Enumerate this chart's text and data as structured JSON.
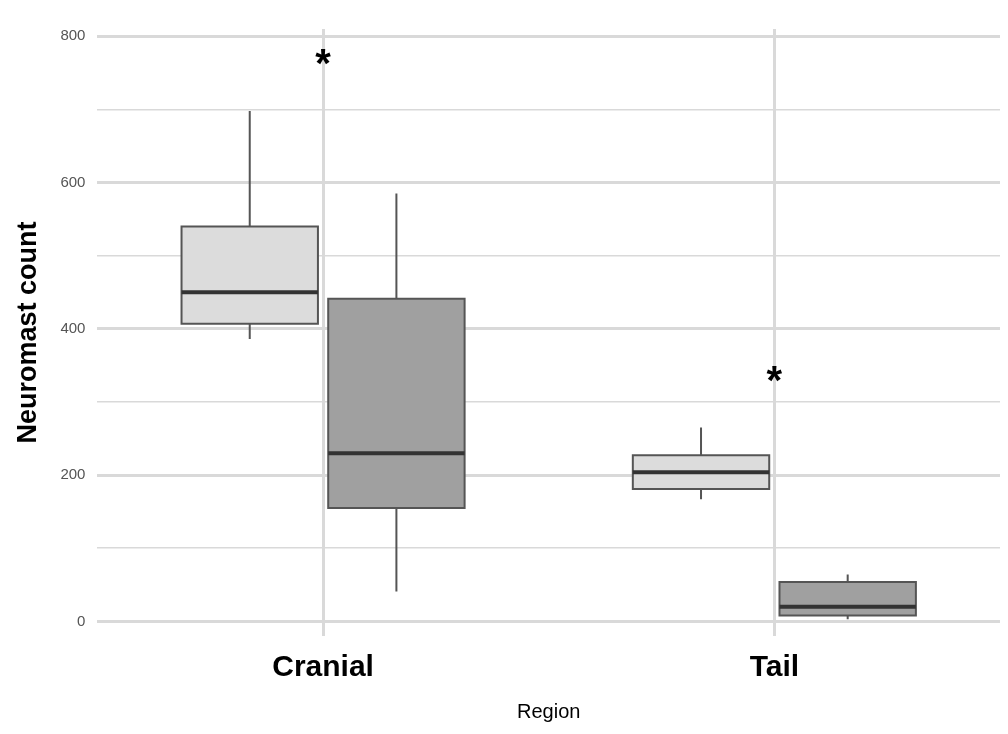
{
  "chart_data": {
    "type": "box",
    "xlabel": "Region",
    "ylabel": "Neuromast count",
    "categories": [
      "Cranial",
      "Tail"
    ],
    "series": [
      {
        "color": "#dcdcdc",
        "boxes": [
          {
            "low": 386,
            "q1": 407,
            "median": 450,
            "q3": 540,
            "high": 698
          },
          {
            "low": 167,
            "q1": 181,
            "median": 204,
            "q3": 227,
            "high": 265
          }
        ]
      },
      {
        "color": "#a0a0a0",
        "boxes": [
          {
            "low": 41,
            "q1": 155,
            "median": 230,
            "q3": 441,
            "high": 585
          },
          {
            "low": 3,
            "q1": 8,
            "median": 20,
            "q3": 54,
            "high": 64
          }
        ]
      }
    ],
    "ylim": [
      -20,
      810
    ],
    "yticks": [
      0,
      {
        "value": 100,
        "label": null
      },
      200,
      {
        "value": 300,
        "label": null
      },
      400,
      {
        "value": 500,
        "label": null
      },
      600,
      {
        "value": 700,
        "label": null
      },
      800
    ],
    "grid": true,
    "annotations": [
      "*",
      "*"
    ]
  }
}
